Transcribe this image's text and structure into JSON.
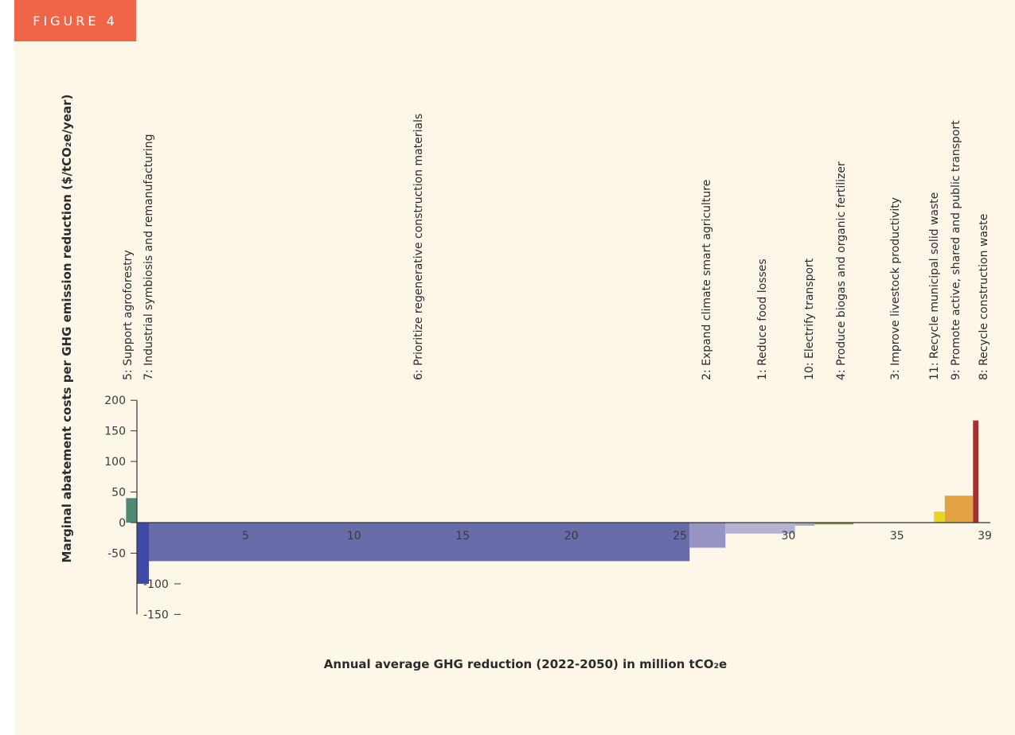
{
  "figure_label": "FIGURE 4",
  "colors": {
    "background": "#fdf7ea",
    "badge": "#f06447"
  },
  "chart_data": {
    "type": "bar",
    "subtype": "marginal-abatement-cost-curve",
    "xlabel": "Annual average GHG reduction (2022-2050) in million tCO₂e",
    "ylabel": "Marginal abatement costs per GHG emission reduction ($/tCO₂e/year)",
    "xlim": [
      0,
      39
    ],
    "ylim": [
      -150,
      200
    ],
    "x_ticks": [
      5,
      10,
      15,
      20,
      25,
      30,
      35,
      39
    ],
    "y_ticks": [
      200,
      150,
      100,
      50,
      0,
      -50,
      -100,
      -150
    ],
    "grid": false,
    "series": [
      {
        "label": "5: Support agroforestry",
        "x_start": -0.5,
        "x_end": 0.0,
        "value": 40,
        "color": "#4f8a74"
      },
      {
        "label": "7: Industrial symbiosis and remanufacturing",
        "x_start": 0.0,
        "x_end": 0.55,
        "value": -100,
        "color": "#3f4aa6"
      },
      {
        "label": "6: Prioritize regenerative construction materials",
        "x_start": 0.55,
        "x_end": 25.45,
        "value": -63,
        "color": "#676ca8"
      },
      {
        "label": "2: Expand climate smart agriculture",
        "x_start": 25.45,
        "x_end": 27.1,
        "value": -41,
        "color": "#9594c2"
      },
      {
        "label": "1: Reduce food losses",
        "x_start": 27.1,
        "x_end": 30.3,
        "value": -18,
        "color": "#b5b3d1"
      },
      {
        "label": "10: Electrify transport",
        "x_start": 30.3,
        "x_end": 31.2,
        "value": -5,
        "color": "#a7a6b5"
      },
      {
        "label": "4: Produce biogas and organic fertilizer",
        "x_start": 31.2,
        "x_end": 33.0,
        "value": -3,
        "color": "#8a9a4a"
      },
      {
        "label": "3: Improve livestock productivity",
        "x_start": 33.0,
        "x_end": 36.7,
        "value": 0,
        "color": "#b9b9b9"
      },
      {
        "label": "11: Recycle municipal solid waste",
        "x_start": 36.7,
        "x_end": 37.2,
        "value": 18,
        "color": "#e6d61e"
      },
      {
        "label": "9: Promote active, shared and public transport",
        "x_start": 37.2,
        "x_end": 38.5,
        "value": 44,
        "color": "#e2a143"
      },
      {
        "label": "8: Recycle construction waste",
        "x_start": 38.5,
        "x_end": 38.75,
        "value": 167,
        "color": "#a2322b"
      }
    ]
  }
}
